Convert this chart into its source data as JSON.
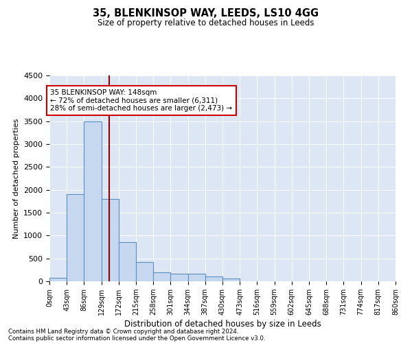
{
  "title": "35, BLENKINSOP WAY, LEEDS, LS10 4GG",
  "subtitle": "Size of property relative to detached houses in Leeds",
  "xlabel": "Distribution of detached houses by size in Leeds",
  "ylabel": "Number of detached properties",
  "bin_labels": [
    "0sqm",
    "43sqm",
    "86sqm",
    "129sqm",
    "172sqm",
    "215sqm",
    "258sqm",
    "301sqm",
    "344sqm",
    "387sqm",
    "430sqm",
    "473sqm",
    "516sqm",
    "559sqm",
    "602sqm",
    "645sqm",
    "688sqm",
    "731sqm",
    "774sqm",
    "817sqm",
    "860sqm"
  ],
  "bin_edges": [
    0,
    43,
    86,
    129,
    172,
    215,
    258,
    301,
    344,
    387,
    430,
    473,
    516,
    559,
    602,
    645,
    688,
    731,
    774,
    817,
    860
  ],
  "bar_heights": [
    80,
    1900,
    3500,
    1800,
    850,
    420,
    200,
    165,
    165,
    100,
    60,
    0,
    0,
    0,
    0,
    0,
    0,
    0,
    0,
    0
  ],
  "bar_color": "#c5d8f0",
  "bar_edge_color": "#5a8fc0",
  "property_sqm": 148,
  "red_line_color": "#8b0000",
  "annotation_text": "35 BLENKINSOP WAY: 148sqm\n← 72% of detached houses are smaller (6,311)\n28% of semi-detached houses are larger (2,473) →",
  "annotation_box_color": "#ffffff",
  "annotation_box_edge": "#cc0000",
  "ylim": [
    0,
    4500
  ],
  "yticks": [
    0,
    500,
    1000,
    1500,
    2000,
    2500,
    3000,
    3500,
    4000,
    4500
  ],
  "bg_color": "#dde6f5",
  "grid_color": "#ffffff",
  "footer_line1": "Contains HM Land Registry data © Crown copyright and database right 2024.",
  "footer_line2": "Contains public sector information licensed under the Open Government Licence v3.0."
}
